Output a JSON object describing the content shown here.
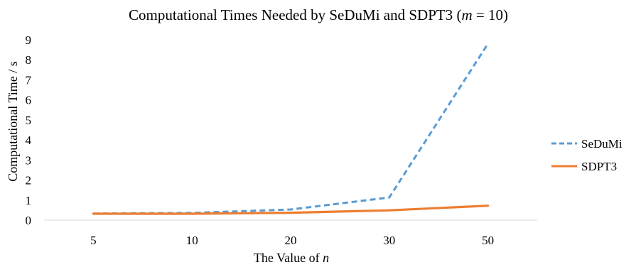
{
  "chart_data": {
    "type": "line",
    "title_prefix": "Computational Times Needed by SeDuMi and SDPT3 (",
    "title_var": "m",
    "title_suffix": " = 10)",
    "xlabel_prefix": "The Value of ",
    "xlabel_var": "n",
    "ylabel": "Computational Time / s",
    "categories": [
      "5",
      "10",
      "20",
      "30",
      "50"
    ],
    "ylim": [
      0,
      9
    ],
    "yticks": [
      "0",
      "1",
      "2",
      "3",
      "4",
      "5",
      "6",
      "7",
      "8",
      "9"
    ],
    "grid": false,
    "legend_position": "right",
    "series": [
      {
        "name": "SeDuMi",
        "values": [
          0.33,
          0.36,
          0.53,
          1.13,
          8.8
        ],
        "color": "#5B9BD5",
        "dash": "dashed"
      },
      {
        "name": "SDPT3",
        "values": [
          0.32,
          0.32,
          0.37,
          0.49,
          0.72
        ],
        "color": "#ED7D31",
        "dash": "solid"
      }
    ]
  }
}
